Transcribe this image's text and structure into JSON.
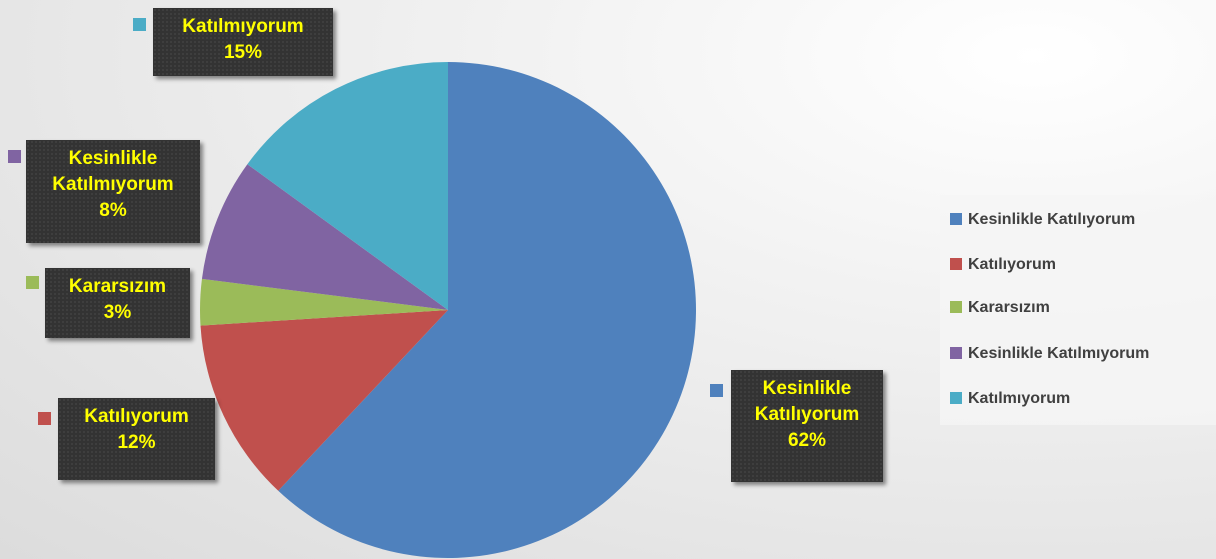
{
  "chart_data": {
    "type": "pie",
    "categories": [
      "Kesinlikle Katılıyorum",
      "Katılıyorum",
      "Kararsızım",
      "Kesinlikle Katılmıyorum",
      "Katılmıyorum"
    ],
    "values": [
      62,
      12,
      3,
      8,
      15
    ],
    "value_labels": [
      "62%",
      "12%",
      "3%",
      "8%",
      "15%"
    ],
    "colors": [
      "#4f81bd",
      "#c0504d",
      "#9bbb59",
      "#8064a2",
      "#4bacc6"
    ],
    "legend": "right"
  }
}
